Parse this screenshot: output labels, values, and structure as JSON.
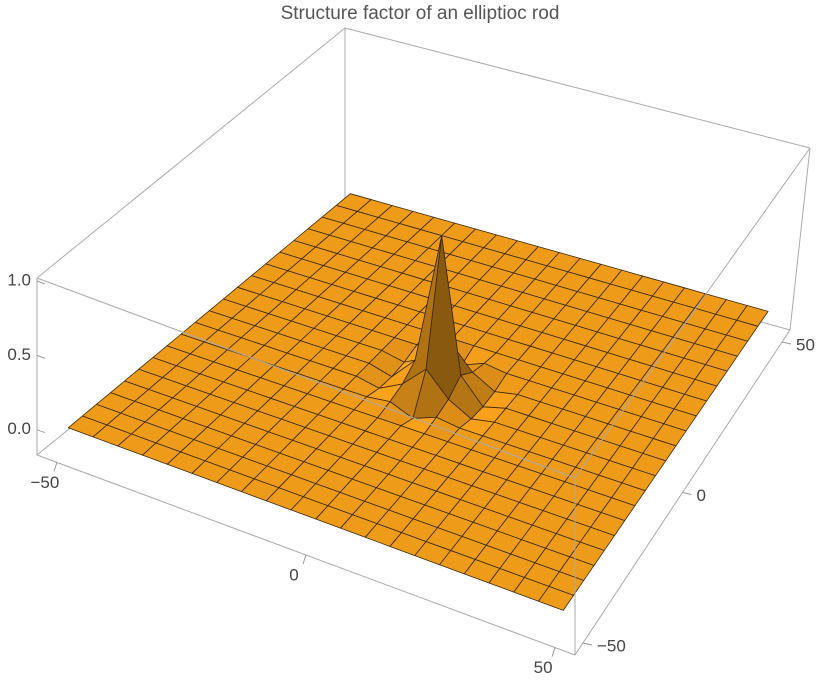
{
  "chart_data": {
    "type": "surface",
    "title": "Structure factor of an elliptioc rod",
    "color": "#f9a11b",
    "mesh": true,
    "x": [
      -50,
      -45,
      -40,
      -35,
      -30,
      -25,
      -20,
      -15,
      -10,
      -5,
      0,
      5,
      10,
      15,
      20,
      25,
      30,
      35,
      40,
      45,
      50
    ],
    "y": [
      -50,
      -45,
      -40,
      -35,
      -30,
      -25,
      -20,
      -15,
      -10,
      -5,
      0,
      5,
      10,
      15,
      20,
      25,
      30,
      35,
      40,
      45,
      50
    ],
    "z": [
      [
        0,
        0,
        0,
        0,
        0,
        0,
        0,
        0,
        0,
        0,
        0,
        0,
        0,
        0,
        0,
        0,
        0,
        0,
        0,
        0,
        0
      ],
      [
        0,
        0,
        0,
        0,
        0,
        0,
        0,
        0,
        0,
        0,
        0,
        0,
        0,
        0,
        0,
        0,
        0,
        0,
        0,
        0,
        0
      ],
      [
        0,
        0,
        0,
        0,
        0,
        0,
        0,
        0,
        0,
        0,
        0,
        0,
        0,
        0,
        0,
        0,
        0,
        0,
        0,
        0,
        0
      ],
      [
        0,
        0,
        0,
        0,
        0,
        0,
        0,
        0,
        0,
        0,
        0,
        0,
        0,
        0,
        0,
        0,
        0,
        0,
        0,
        0,
        0
      ],
      [
        0,
        0,
        0,
        0,
        0,
        0,
        0,
        0,
        0,
        0,
        0,
        0,
        0,
        0,
        0,
        0,
        0,
        0,
        0,
        0,
        0
      ],
      [
        0,
        0,
        0,
        0,
        0,
        0,
        0,
        0,
        0,
        0,
        0,
        0,
        0,
        0,
        0,
        0,
        0,
        0,
        0,
        0,
        0
      ],
      [
        0,
        0,
        0,
        0,
        0,
        0,
        0,
        0,
        0,
        0,
        0,
        0,
        0,
        0,
        0,
        0,
        0,
        0,
        0,
        0,
        0
      ],
      [
        0,
        0,
        0,
        0,
        0,
        0,
        0,
        0,
        0,
        0,
        0,
        0,
        0,
        0,
        0,
        0,
        0,
        0,
        0,
        0,
        0
      ],
      [
        0,
        0,
        0,
        0,
        0,
        0,
        0,
        0,
        0,
        0.02,
        -0.04,
        0.02,
        0,
        0,
        0,
        0,
        0,
        0,
        0,
        0,
        0
      ],
      [
        0,
        0,
        0,
        0,
        0,
        0,
        0,
        0,
        -0.03,
        0.05,
        0.2,
        0.05,
        -0.03,
        0,
        0,
        0,
        0,
        0,
        0,
        0,
        0
      ],
      [
        0,
        0,
        0,
        0,
        0,
        0,
        0,
        0,
        -0.04,
        0.12,
        1,
        0.12,
        -0.04,
        0,
        0,
        0,
        0,
        0,
        0,
        0,
        0
      ],
      [
        0,
        0,
        0,
        0,
        0,
        0,
        0,
        0,
        -0.03,
        0.05,
        0.2,
        0.05,
        -0.03,
        0,
        0,
        0,
        0,
        0,
        0,
        0,
        0
      ],
      [
        0,
        0,
        0,
        0,
        0,
        0,
        0,
        0,
        0,
        0.02,
        -0.04,
        0.02,
        0,
        0,
        0,
        0,
        0,
        0,
        0,
        0,
        0
      ],
      [
        0,
        0,
        0,
        0,
        0,
        0,
        0,
        0,
        0,
        0,
        0,
        0,
        0,
        0,
        0,
        0,
        0,
        0,
        0,
        0,
        0
      ],
      [
        0,
        0,
        0,
        0,
        0,
        0,
        0,
        0,
        0,
        0,
        0,
        0,
        0,
        0,
        0,
        0,
        0,
        0,
        0,
        0,
        0
      ],
      [
        0,
        0,
        0,
        0,
        0,
        0,
        0,
        0,
        0,
        0,
        0,
        0,
        0,
        0,
        0,
        0,
        0,
        0,
        0,
        0,
        0
      ],
      [
        0,
        0,
        0,
        0,
        0,
        0,
        0,
        0,
        0,
        0,
        0,
        0,
        0,
        0,
        0,
        0,
        0,
        0,
        0,
        0,
        0
      ],
      [
        0,
        0,
        0,
        0,
        0,
        0,
        0,
        0,
        0,
        0,
        0,
        0,
        0,
        0,
        0,
        0,
        0,
        0,
        0,
        0,
        0
      ],
      [
        0,
        0,
        0,
        0,
        0,
        0,
        0,
        0,
        0,
        0,
        0,
        0,
        0,
        0,
        0,
        0,
        0,
        0,
        0,
        0,
        0
      ],
      [
        0,
        0,
        0,
        0,
        0,
        0,
        0,
        0,
        0,
        0,
        0,
        0,
        0,
        0,
        0,
        0,
        0,
        0,
        0,
        0,
        0
      ],
      [
        0,
        0,
        0,
        0,
        0,
        0,
        0,
        0,
        0,
        0,
        0,
        0,
        0,
        0,
        0,
        0,
        0,
        0,
        0,
        0,
        0
      ]
    ],
    "xlim": [
      -54,
      54
    ],
    "ylim": [
      -54,
      54
    ],
    "zlim": [
      -0.17,
      1.02
    ],
    "xticks": [
      {
        "value": -50,
        "label": "−50"
      },
      0,
      50
    ],
    "yticks": [
      {
        "value": -50,
        "label": "−50"
      },
      0,
      50
    ],
    "zticks": [
      {
        "value": 0,
        "label": "0.0"
      },
      0.5,
      {
        "value": 1,
        "label": "1.0"
      }
    ]
  }
}
